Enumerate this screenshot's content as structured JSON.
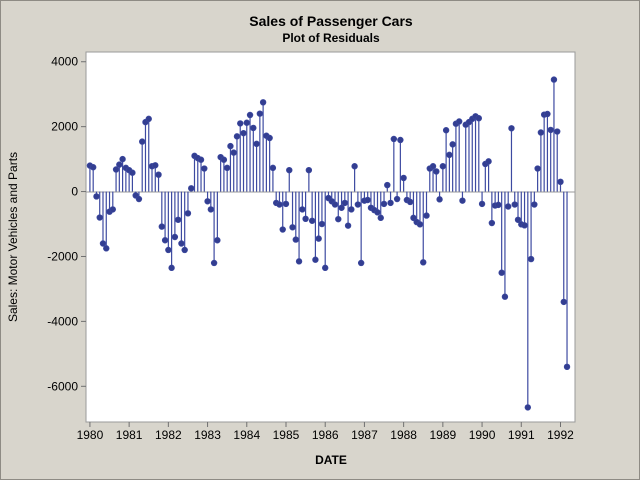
{
  "window": {
    "background_color": "#d8d5cc",
    "border_color": "#8e8b84"
  },
  "chart": {
    "title": "Sales of Passenger Cars",
    "subtitle": "Plot of Residuals",
    "xlabel": "DATE",
    "ylabel": "Sales: Motor Vehicles and Parts"
  },
  "chart_data": {
    "type": "stem",
    "title": "Sales of Passenger Cars",
    "subtitle": "Plot of Residuals",
    "xlabel": "DATE",
    "ylabel": "Sales: Motor Vehicles and Parts",
    "x_start_year": 1980,
    "x_step_months": 1,
    "x_ticks": [
      1980,
      1981,
      1982,
      1983,
      1984,
      1985,
      1986,
      1987,
      1988,
      1989,
      1990,
      1991,
      1992
    ],
    "y_ticks": [
      4000,
      2000,
      0,
      -2000,
      -4000,
      -6000
    ],
    "ylim": [
      -7100,
      4300
    ],
    "xlim": [
      1979.9,
      1992.37
    ],
    "grid": false,
    "legend": "none",
    "series_name": "residuals",
    "values": [
      800,
      750,
      -150,
      -800,
      -1600,
      -1750,
      -620,
      -550,
      680,
      830,
      1000,
      730,
      660,
      580,
      -120,
      -230,
      1540,
      2140,
      2240,
      780,
      810,
      520,
      -1080,
      -1500,
      -1800,
      -2350,
      -1400,
      -870,
      -1600,
      -1800,
      -670,
      100,
      1100,
      1030,
      980,
      710,
      -300,
      -550,
      -2200,
      -1500,
      1060,
      980,
      730,
      1400,
      1200,
      1700,
      2100,
      1800,
      2120,
      2360,
      1960,
      1470,
      2400,
      2750,
      1720,
      1650,
      730,
      -350,
      -400,
      -1170,
      -380,
      660,
      -1100,
      -1480,
      -2150,
      -550,
      -840,
      660,
      -900,
      -2100,
      -1450,
      -1000,
      -2350,
      -200,
      -300,
      -400,
      -850,
      -500,
      -350,
      -1050,
      -550,
      780,
      -400,
      -2200,
      -280,
      -260,
      -500,
      -570,
      -640,
      -810,
      -380,
      200,
      -350,
      1620,
      -230,
      1590,
      420,
      -260,
      -320,
      -810,
      -940,
      -1010,
      -2180,
      -740,
      710,
      780,
      620,
      -240,
      780,
      1890,
      1130,
      1455,
      2090,
      2160,
      -280,
      2060,
      2140,
      2240,
      2320,
      2260,
      -380,
      850,
      930,
      -970,
      -430,
      -410,
      -2500,
      -3240,
      -460,
      1950,
      -400,
      -870,
      -1010,
      -1040,
      -6650,
      -2080,
      -400,
      710,
      1820,
      2370,
      2390,
      1900,
      3450,
      1850,
      300,
      -3400,
      -5400
    ],
    "colors": {
      "stem": "#3d4aa1",
      "dot": "#333e91",
      "axis": "#9a9a9a",
      "tick": "#707070",
      "text": "#000000",
      "plot_bg": "#ffffff"
    }
  }
}
